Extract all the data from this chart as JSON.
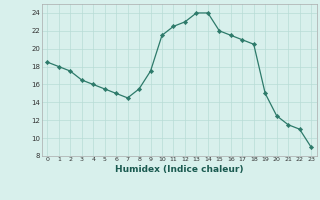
{
  "x": [
    0,
    1,
    2,
    3,
    4,
    5,
    6,
    7,
    8,
    9,
    10,
    11,
    12,
    13,
    14,
    15,
    16,
    17,
    18,
    19,
    20,
    21,
    22,
    23
  ],
  "y": [
    18.5,
    18.0,
    17.5,
    16.5,
    16.0,
    15.5,
    15.0,
    14.5,
    15.5,
    17.5,
    21.5,
    22.5,
    23.0,
    24.0,
    24.0,
    22.0,
    21.5,
    21.0,
    20.5,
    15.0,
    12.5,
    11.5,
    11.0,
    9.0
  ],
  "line_color": "#2d7a6a",
  "marker": "D",
  "marker_size": 2.2,
  "bg_color": "#d8f0ec",
  "grid_color": "#b8dcd6",
  "xlabel": "Humidex (Indice chaleur)",
  "xlim": [
    -0.5,
    23.5
  ],
  "ylim": [
    8,
    25
  ],
  "yticks": [
    8,
    10,
    12,
    14,
    16,
    18,
    20,
    22,
    24
  ],
  "xticks": [
    0,
    1,
    2,
    3,
    4,
    5,
    6,
    7,
    8,
    9,
    10,
    11,
    12,
    13,
    14,
    15,
    16,
    17,
    18,
    19,
    20,
    21,
    22,
    23
  ]
}
